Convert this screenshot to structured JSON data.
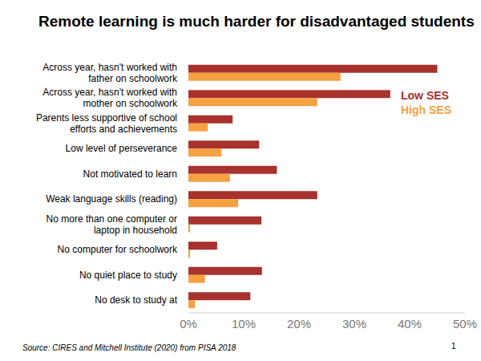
{
  "chart_data": {
    "type": "bar",
    "title": "Remote learning is much harder for disadvantaged students",
    "orientation": "horizontal",
    "categories": [
      "Across year, hasn't worked with father on schoolwork",
      "Across year, hasn't worked with mother on schoolwork",
      "Parents less supportive of school efforts and achievements",
      "Low level of perseverance",
      "Not motivated to learn",
      "Weak language skills (reading)",
      "No more than one computer or laptop in household",
      "No computer for schoolwork",
      "No quiet place to study",
      "No desk to study at"
    ],
    "series": [
      {
        "name": "Low SES",
        "color": "#a8322d",
        "values": [
          45,
          36.5,
          8,
          12.8,
          16,
          23.3,
          13.2,
          5.2,
          13.3,
          11.2
        ]
      },
      {
        "name": "High SES",
        "color": "#f5a142",
        "values": [
          27.5,
          23.3,
          3.5,
          6,
          7.5,
          9,
          0.3,
          0.3,
          3,
          1.2
        ]
      }
    ],
    "xlim": [
      0,
      50
    ],
    "xticks": [
      {
        "value": 0,
        "label": "0%"
      },
      {
        "value": 10,
        "label": "10%"
      },
      {
        "value": 20,
        "label": "20%"
      },
      {
        "value": 30,
        "label": "30%"
      },
      {
        "value": 40,
        "label": "40%"
      },
      {
        "value": 50,
        "label": "50%"
      }
    ],
    "legend": "upper right",
    "grid": false,
    "source": "Source: CIRES and Mitchell Institute (2020) from PISA 2018",
    "page_number": "1"
  }
}
